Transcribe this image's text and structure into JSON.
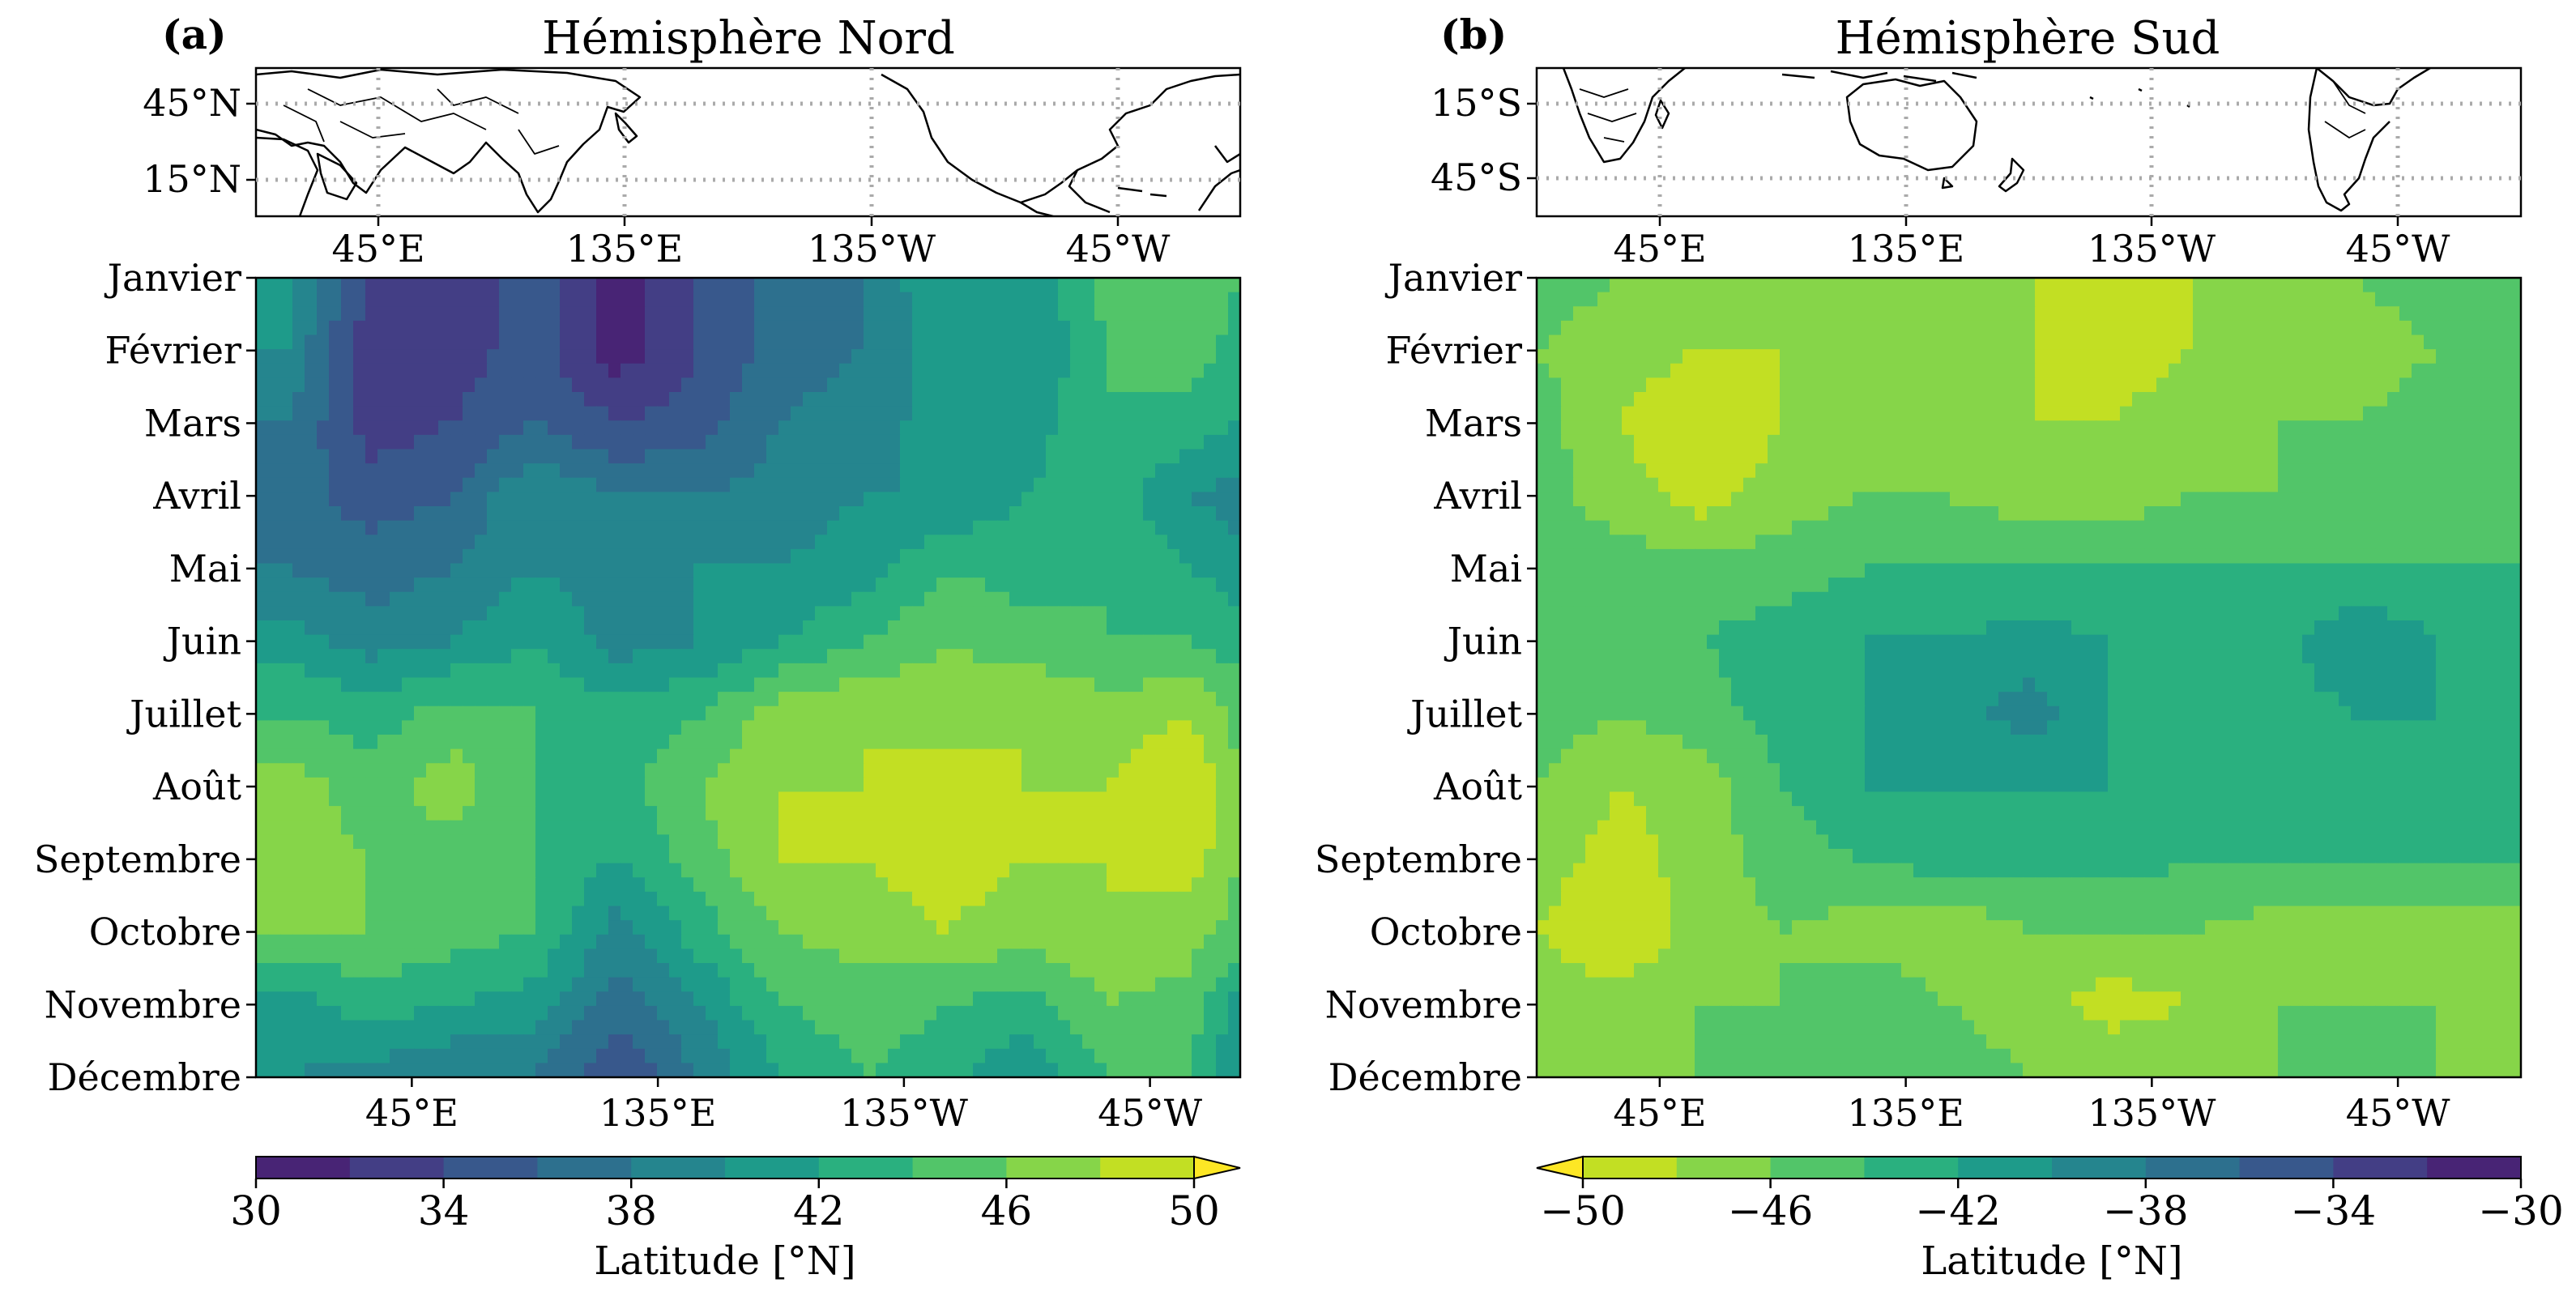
{
  "figure": {
    "panels": [
      {
        "label": "(a)",
        "title": "Hémisphère Nord",
        "map": {
          "lat_ticks": [
            "45°N",
            "15°N"
          ],
          "lon_ticks": [
            "45°E",
            "135°E",
            "135°W",
            "45°W"
          ]
        },
        "colorbar": {
          "ticks": [
            "30",
            "34",
            "38",
            "42",
            "46",
            "50"
          ],
          "label": "Latitude [°N]",
          "extend": "max"
        }
      },
      {
        "label": "(b)",
        "title": "Hémisphère Sud",
        "map": {
          "lat_ticks": [
            "15°S",
            "45°S"
          ],
          "lon_ticks": [
            "45°E",
            "135°E",
            "135°W",
            "45°W"
          ]
        },
        "colorbar": {
          "ticks": [
            "−50",
            "−46",
            "−42",
            "−38",
            "−34",
            "−30"
          ],
          "label": "Latitude [°N]",
          "extend": "min"
        }
      }
    ]
  },
  "chart_data": [
    {
      "type": "heatmap",
      "panel": "(a)",
      "title": "Hémisphère Nord",
      "x_ticks": [
        "45°E",
        "135°E",
        "135°W",
        "45°W"
      ],
      "x_tick_lon": [
        45,
        135,
        225,
        315
      ],
      "xlim": [
        -12,
        348
      ],
      "y_ticks": [
        "Janvier",
        "Février",
        "Mars",
        "Avril",
        "Mai",
        "Juin",
        "Juillet",
        "Août",
        "Septembre",
        "Octobre",
        "Novembre",
        "Décembre"
      ],
      "z_levels": [
        30,
        32,
        34,
        36,
        38,
        40,
        42,
        44,
        46,
        48,
        50
      ],
      "z_unit": "Latitude [°N]",
      "colormap": "viridis",
      "lon": [
        0,
        30,
        60,
        90,
        120,
        150,
        180,
        210,
        240,
        270,
        300,
        330,
        348
      ],
      "z": [
        [
          40,
          34,
          33,
          35,
          31,
          34,
          37,
          38,
          42,
          40,
          45,
          46,
          44
        ],
        [
          40,
          32,
          33,
          35,
          31,
          34,
          37,
          38,
          41,
          40,
          44,
          45,
          43
        ],
        [
          38,
          33,
          34,
          36,
          34,
          35,
          38,
          39,
          41,
          41,
          44,
          43,
          42
        ],
        [
          37,
          35,
          36,
          40,
          38,
          38,
          39,
          40,
          40,
          42,
          43,
          40,
          39
        ],
        [
          38,
          37,
          38,
          40,
          39,
          40,
          40,
          41,
          44,
          43,
          44,
          42,
          41
        ],
        [
          41,
          39,
          40,
          42,
          39,
          40,
          42,
          44,
          46,
          45,
          44,
          44,
          43
        ],
        [
          44,
          43,
          45,
          44,
          43,
          44,
          47,
          48,
          47,
          48,
          47,
          48,
          45
        ],
        [
          47,
          45,
          47,
          44,
          43,
          46,
          48,
          48,
          49,
          48,
          48,
          50,
          46
        ],
        [
          47,
          46,
          45,
          44,
          42,
          45,
          48,
          48,
          49,
          48,
          48,
          49,
          46
        ],
        [
          46,
          46,
          45,
          44,
          39,
          43,
          46,
          47,
          48,
          47,
          48,
          47,
          45
        ],
        [
          41,
          43,
          42,
          41,
          37,
          40,
          44,
          45,
          44,
          43,
          46,
          45,
          41
        ],
        [
          40,
          39,
          38,
          38,
          34,
          38,
          42,
          44,
          43,
          40,
          44,
          44,
          40
        ]
      ]
    },
    {
      "type": "heatmap",
      "panel": "(b)",
      "title": "Hémisphère Sud",
      "x_ticks": [
        "45°E",
        "135°E",
        "135°W",
        "45°W"
      ],
      "x_tick_lon": [
        45,
        135,
        225,
        315
      ],
      "xlim": [
        0,
        360
      ],
      "y_ticks": [
        "Janvier",
        "Février",
        "Mars",
        "Avril",
        "Mai",
        "Juin",
        "Juillet",
        "Août",
        "Septembre",
        "Octobre",
        "Novembre",
        "Décembre"
      ],
      "z_levels": [
        -50,
        -48,
        -46,
        -44,
        -42,
        -40,
        -38,
        -36,
        -34,
        -32,
        -30
      ],
      "z_unit": "Latitude [°N]",
      "colormap": "viridis_r",
      "lon": [
        0,
        30,
        60,
        90,
        120,
        150,
        180,
        210,
        240,
        270,
        300,
        330,
        360
      ],
      "z": [
        [
          -45,
          -46,
          -47,
          -46,
          -47,
          -48,
          -48,
          -48,
          -48,
          -47,
          -46,
          -45,
          -45
        ],
        [
          -46,
          -47,
          -48,
          -48,
          -47,
          -48,
          -48,
          -49,
          -48,
          -48,
          -47,
          -46,
          -45
        ],
        [
          -45,
          -48,
          -50,
          -48,
          -47,
          -47,
          -48,
          -48,
          -47,
          -46,
          -46,
          -45,
          -45
        ],
        [
          -45,
          -47,
          -49,
          -47,
          -46,
          -46,
          -47,
          -47,
          -46,
          -46,
          -45,
          -45,
          -44
        ],
        [
          -46,
          -45,
          -45,
          -45,
          -44,
          -44,
          -44,
          -44,
          -44,
          -44,
          -44,
          -44,
          -44
        ],
        [
          -44,
          -46,
          -44,
          -43,
          -42,
          -42,
          -41,
          -42,
          -43,
          -43,
          -40,
          -42,
          -43
        ],
        [
          -45,
          -46,
          -45,
          -43,
          -42,
          -41,
          -39,
          -42,
          -43,
          -43,
          -42,
          -42,
          -43
        ],
        [
          -46,
          -48,
          -47,
          -44,
          -42,
          -42,
          -42,
          -42,
          -43,
          -43,
          -43,
          -43,
          -43
        ],
        [
          -47,
          -49,
          -47,
          -45,
          -44,
          -43,
          -43,
          -43,
          -44,
          -44,
          -44,
          -44,
          -44
        ],
        [
          -48,
          -50,
          -47,
          -46,
          -47,
          -48,
          -46,
          -46,
          -46,
          -47,
          -47,
          -47,
          -47
        ],
        [
          -47,
          -47,
          -46,
          -46,
          -44,
          -46,
          -47,
          -49,
          -48,
          -46,
          -46,
          -46,
          -48
        ],
        [
          -46,
          -46,
          -46,
          -45,
          -45,
          -45,
          -46,
          -46,
          -46,
          -46,
          -46,
          -46,
          -46
        ]
      ]
    }
  ]
}
